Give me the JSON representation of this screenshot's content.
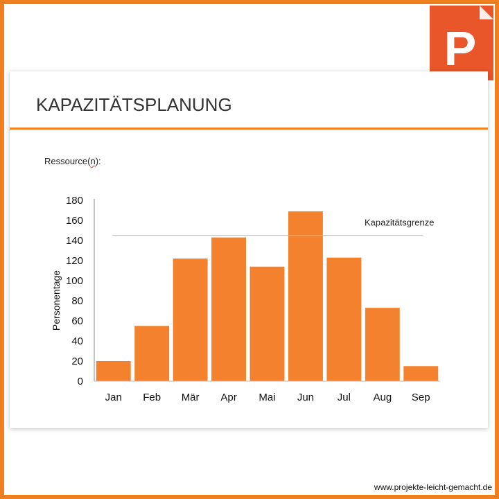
{
  "logo": {
    "icon": "powerpoint-icon",
    "letter": "P",
    "color": "#e8562a"
  },
  "slide": {
    "title": "KAPAZITÄTSPLANUNG",
    "ressource_prefix": "Ressource(",
    "ressource_n": "n",
    "ressource_suffix": "):"
  },
  "chart_data": {
    "type": "bar",
    "categories": [
      "Jan",
      "Feb",
      "Mär",
      "Apr",
      "Mai",
      "Jun",
      "Jul",
      "Aug",
      "Sep"
    ],
    "values": [
      20,
      55,
      122,
      143,
      114,
      169,
      123,
      73,
      15
    ],
    "ylabel": "Personentage",
    "xlabel": "",
    "ylim": [
      0,
      180
    ],
    "yticks": [
      0,
      20,
      40,
      60,
      80,
      100,
      120,
      140,
      160,
      180
    ],
    "bar_color": "#f4812e",
    "reference_line": {
      "label": "Kapazitätsgrenze",
      "value": 143
    },
    "grid": false
  },
  "footer": {
    "url": "www.projekte-leicht-gemacht.de"
  }
}
